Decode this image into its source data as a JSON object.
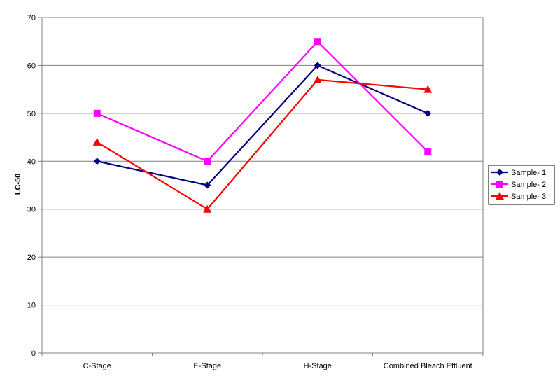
{
  "chart_data": {
    "type": "line",
    "title": "",
    "xlabel": "",
    "ylabel": "LC-50",
    "categories": [
      "C-Stage",
      "E-Stage",
      "H-Stage",
      "Combined Bleach Effluent"
    ],
    "ylim": [
      0,
      70
    ],
    "yticks": [
      0,
      10,
      20,
      30,
      40,
      50,
      60,
      70
    ],
    "grid": true,
    "legend_position": "right",
    "series": [
      {
        "name": "Sample- 1",
        "values": [
          40,
          35,
          60,
          50
        ],
        "color": "#000080",
        "marker": "diamond"
      },
      {
        "name": "Sample- 2",
        "values": [
          50,
          40,
          65,
          42
        ],
        "color": "#ff00ff",
        "marker": "square"
      },
      {
        "name": "Sample- 3",
        "values": [
          44,
          30,
          57,
          55
        ],
        "color": "#ff0000",
        "marker": "triangle"
      }
    ]
  }
}
